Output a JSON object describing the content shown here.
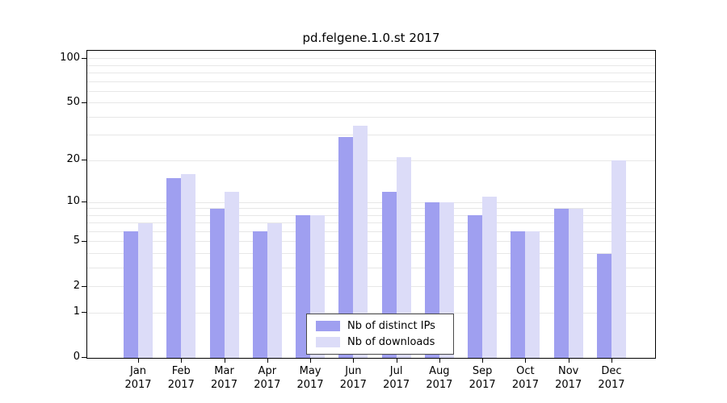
{
  "chart_data": {
    "type": "bar",
    "title": "pd.felgene.1.0.st 2017",
    "xlabel": "",
    "ylabel": "",
    "yscale": "log1p",
    "ylim": [
      0,
      113
    ],
    "yticks": [
      0,
      1,
      2,
      5,
      10,
      20,
      50,
      100
    ],
    "grid_values": [
      1,
      2,
      3,
      4,
      5,
      6,
      7,
      8,
      9,
      10,
      20,
      30,
      40,
      50,
      60,
      70,
      80,
      90,
      100
    ],
    "grid": "horizontal",
    "legend_position": "bottom-center-inside",
    "year": "2017",
    "categories": [
      "Jan",
      "Feb",
      "Mar",
      "Apr",
      "May",
      "Jun",
      "Jul",
      "Aug",
      "Sep",
      "Oct",
      "Nov",
      "Dec"
    ],
    "series": [
      {
        "name": "Nb of distinct IPs",
        "color": "#9f9ff0",
        "values": [
          6,
          15,
          9,
          6,
          8,
          29,
          12,
          10,
          8,
          6,
          9,
          4
        ]
      },
      {
        "name": "Nb of downloads",
        "color": "#dcdcf8",
        "values": [
          7,
          16,
          12,
          7,
          8,
          35,
          21,
          10,
          11,
          6,
          9,
          20
        ]
      }
    ]
  },
  "colors": {
    "axis": "#000000",
    "grid": "#e7e7e7",
    "background": "#ffffff",
    "text": "#000000"
  }
}
